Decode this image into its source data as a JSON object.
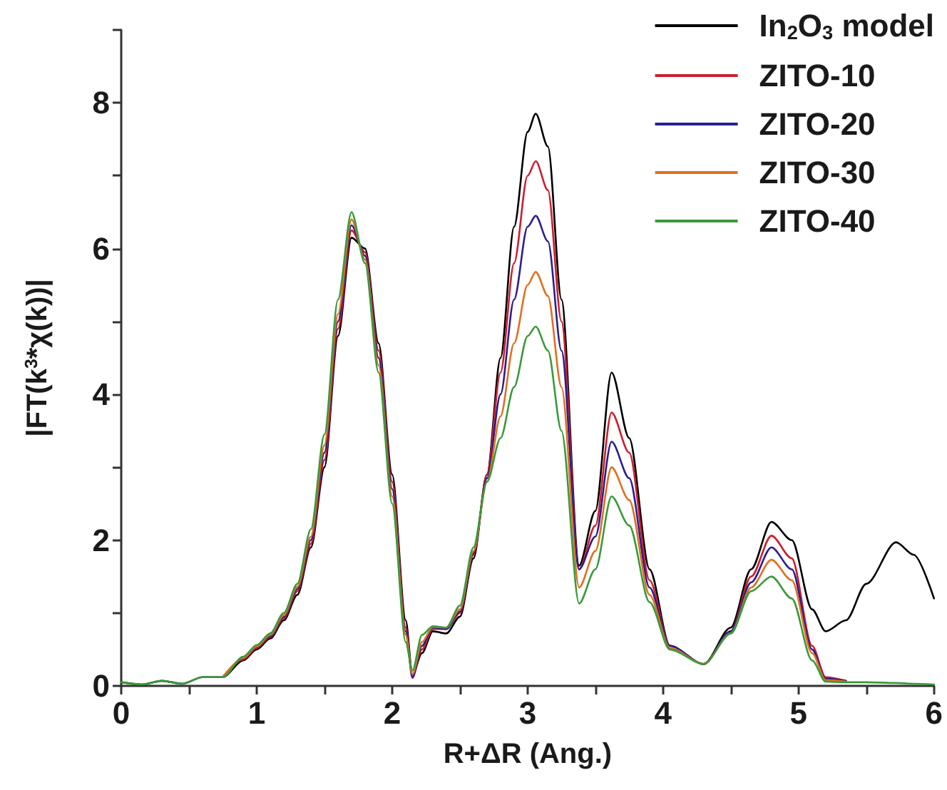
{
  "chart_data": {
    "type": "line",
    "xlabel": "R+ΔR (Ang.)",
    "ylabel": "|FT(k$^{3}$*χ(k))|",
    "x": [
      0,
      0.15,
      0.3,
      0.45,
      0.6,
      0.75,
      0.9,
      1.0,
      1.1,
      1.2,
      1.3,
      1.4,
      1.5,
      1.6,
      1.7,
      1.8,
      1.9,
      2.0,
      2.1,
      2.15,
      2.22,
      2.3,
      2.4,
      2.5,
      2.6,
      2.7,
      2.8,
      2.9,
      3.0,
      3.06,
      3.15,
      3.25,
      3.38,
      3.5,
      3.62,
      3.75,
      3.9,
      4.05,
      4.3,
      4.5,
      4.65,
      4.8,
      4.95,
      5.1,
      5.2,
      5.35,
      5.5,
      5.72,
      5.85,
      6.0
    ],
    "series": [
      {
        "name": "In$_{2}$O$_{3}$ model",
        "color": "#000000",
        "values": [
          0.05,
          0.02,
          0.07,
          0.03,
          0.12,
          0.12,
          0.35,
          0.5,
          0.65,
          0.9,
          1.25,
          1.9,
          3.0,
          4.8,
          6.15,
          6.0,
          4.7,
          2.9,
          0.9,
          0.15,
          0.45,
          0.75,
          0.72,
          0.95,
          1.75,
          2.9,
          4.5,
          6.3,
          7.6,
          7.85,
          7.4,
          5.3,
          1.65,
          2.4,
          4.3,
          3.4,
          1.6,
          0.55,
          0.3,
          0.8,
          1.6,
          2.25,
          2.0,
          1.05,
          0.75,
          0.9,
          1.4,
          1.97,
          1.8,
          1.2
        ]
      },
      {
        "name": "ZITO-10",
        "color": "#cc1f2e",
        "values": [
          null,
          null,
          null,
          null,
          null,
          0.12,
          0.36,
          0.52,
          0.67,
          0.93,
          1.3,
          1.95,
          3.1,
          4.9,
          6.25,
          5.95,
          4.6,
          2.8,
          0.8,
          0.14,
          0.5,
          0.78,
          0.78,
          1.0,
          1.8,
          2.9,
          4.3,
          5.8,
          7.0,
          7.2,
          6.8,
          5.0,
          1.6,
          2.2,
          3.75,
          3.2,
          1.45,
          0.55,
          0.3,
          0.75,
          1.5,
          2.06,
          1.75,
          0.55,
          0.12,
          0.07,
          null,
          null,
          null,
          null
        ]
      },
      {
        "name": "ZITO-20",
        "color": "#2a1f8f",
        "values": [
          null,
          null,
          null,
          null,
          null,
          0.12,
          0.37,
          0.53,
          0.68,
          0.95,
          1.33,
          2.0,
          3.2,
          5.0,
          6.32,
          5.9,
          4.5,
          2.7,
          0.75,
          0.11,
          0.55,
          0.8,
          0.78,
          1.02,
          1.82,
          2.85,
          4.0,
          5.3,
          6.3,
          6.45,
          6.1,
          4.6,
          1.6,
          2.05,
          3.35,
          2.85,
          1.35,
          0.55,
          0.3,
          0.75,
          1.42,
          1.9,
          1.6,
          0.5,
          0.1,
          0.07,
          null,
          null,
          null,
          null
        ]
      },
      {
        "name": "ZITO-30",
        "color": "#e07020",
        "values": [
          null,
          null,
          null,
          null,
          null,
          0.12,
          0.38,
          0.54,
          0.7,
          0.97,
          1.36,
          2.05,
          3.3,
          5.1,
          6.4,
          5.85,
          4.4,
          2.6,
          0.7,
          0.16,
          0.6,
          0.81,
          0.8,
          1.05,
          1.85,
          2.8,
          3.7,
          4.7,
          5.5,
          5.68,
          5.35,
          4.1,
          1.35,
          1.85,
          3.0,
          2.55,
          1.25,
          0.52,
          0.3,
          0.72,
          1.35,
          1.73,
          1.45,
          0.45,
          0.08,
          0.06,
          null,
          null,
          null,
          null
        ]
      },
      {
        "name": "ZITO-40",
        "color": "#3a9a3a",
        "values": [
          0.05,
          0.02,
          0.07,
          0.03,
          0.12,
          0.12,
          0.4,
          0.56,
          0.72,
          1.0,
          1.4,
          2.15,
          3.45,
          5.3,
          6.5,
          5.8,
          4.3,
          2.5,
          0.6,
          0.21,
          0.7,
          0.82,
          0.8,
          1.1,
          1.9,
          2.8,
          3.4,
          4.1,
          4.8,
          4.93,
          4.6,
          3.5,
          1.13,
          1.6,
          2.6,
          2.2,
          1.15,
          0.5,
          0.3,
          0.72,
          1.3,
          1.5,
          1.2,
          0.35,
          0.06,
          0.05,
          0.05,
          0.04,
          0.03,
          0.02
        ]
      }
    ],
    "xlim": [
      0,
      6
    ],
    "xticks": [
      0,
      {
        "value": 0.5,
        "label": null
      },
      1,
      {
        "value": 1.5,
        "label": null
      },
      2,
      {
        "value": 2.5,
        "label": null
      },
      3,
      {
        "value": 3.5,
        "label": null
      },
      4,
      {
        "value": 4.5,
        "label": null
      },
      5,
      {
        "value": 5.5,
        "label": null
      },
      6
    ],
    "ylim": [
      0,
      9
    ],
    "yticks": [
      0,
      {
        "value": 1,
        "label": null
      },
      2,
      {
        "value": 3,
        "label": null
      },
      4,
      {
        "value": 5,
        "label": null
      },
      6,
      {
        "value": 7,
        "label": null
      },
      8,
      {
        "value": 9,
        "label": null
      }
    ],
    "grid": false,
    "legend": "top right",
    "marker": "none",
    "line_style": "solid"
  }
}
